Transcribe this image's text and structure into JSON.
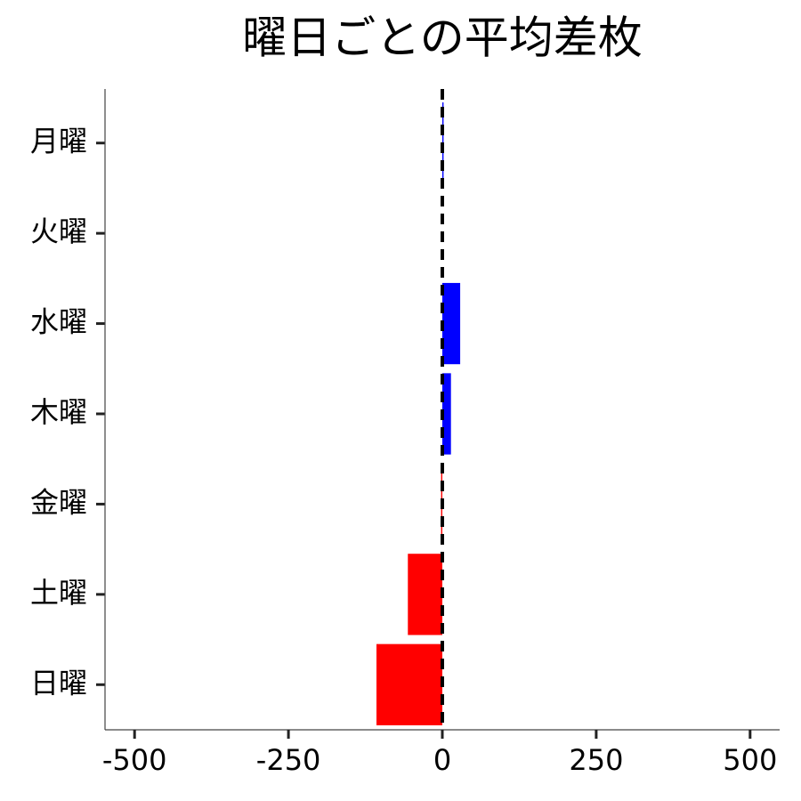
{
  "chart_data": {
    "type": "barh",
    "title": "曜日ごとの平均差枚",
    "categories": [
      "月曜",
      "火曜",
      "水曜",
      "木曜",
      "金曜",
      "土曜",
      "日曜"
    ],
    "values": [
      2,
      0,
      29,
      14,
      -2,
      -56,
      -107
    ],
    "colors": [
      "#0000ff",
      "#0000ff",
      "#0000ff",
      "#0000ff",
      "#ff0000",
      "#ff0000",
      "#ff0000"
    ],
    "xlim": [
      -548,
      548
    ],
    "xticks": [
      -500,
      -250,
      0,
      250,
      500
    ],
    "reference_line": 0,
    "grid": false
  }
}
